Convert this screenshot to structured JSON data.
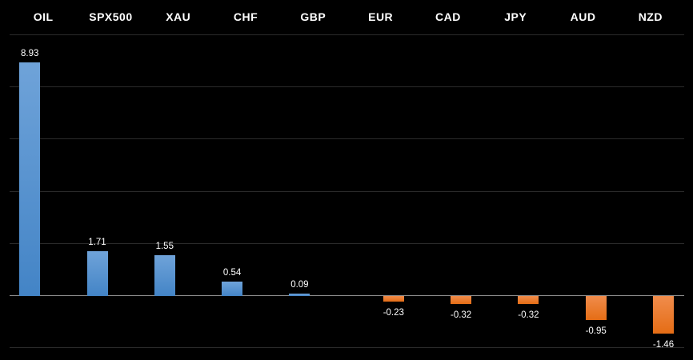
{
  "chart_data": {
    "type": "bar",
    "title": "",
    "categories": [
      "OIL",
      "SPX500",
      "XAU",
      "CHF",
      "GBP",
      "EUR",
      "CAD",
      "JPY",
      "AUD",
      "NZD"
    ],
    "values": [
      8.93,
      1.71,
      1.55,
      0.54,
      0.09,
      -0.23,
      -0.32,
      -0.32,
      -0.95,
      -1.46
    ],
    "value_labels": [
      "8.93",
      "1.71",
      "1.55",
      "0.54",
      "0.09",
      "-0.23",
      "-0.32",
      "-0.32",
      "-0.95",
      "-1.46"
    ],
    "xlabel": "",
    "ylabel": "",
    "ylim": [
      -2,
      10
    ],
    "gridline_values": [
      10,
      8,
      6,
      4,
      2,
      -2
    ],
    "zero_line_value": 0,
    "grid_on": true,
    "legend_position": "none",
    "series_note": "positive values drawn as blue series (left slot), negative values as orange series (right slot)",
    "colors": {
      "background": "#000000",
      "positive_bar_top": "#6FA3D9",
      "positive_bar_bottom": "#4384C6",
      "negative_bar_top": "#F08C4C",
      "negative_bar_bottom": "#E56D15",
      "gridline": "#2b2b2b",
      "zero_line": "#8c8c8c",
      "category_text": "#ffffff",
      "value_text": "#ffffff"
    }
  }
}
